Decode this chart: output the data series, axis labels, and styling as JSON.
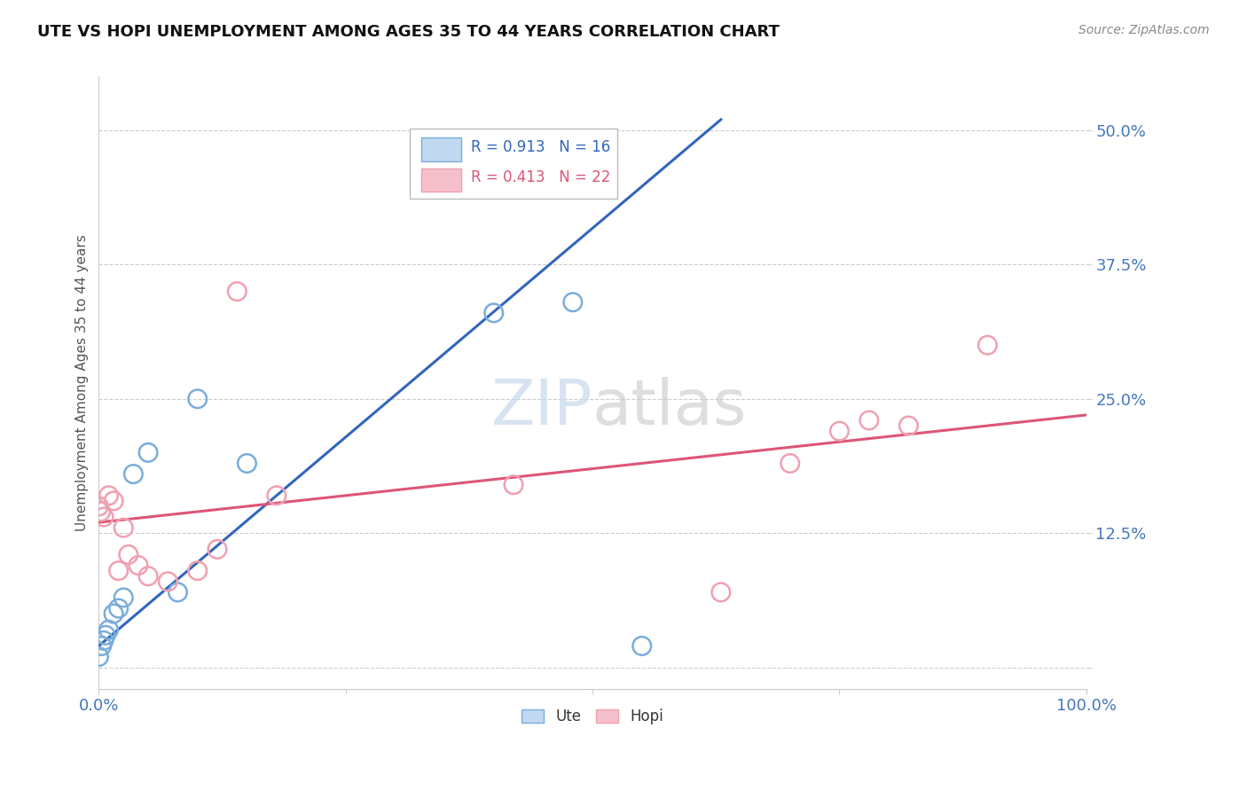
{
  "title": "UTE VS HOPI UNEMPLOYMENT AMONG AGES 35 TO 44 YEARS CORRELATION CHART",
  "source": "Source: ZipAtlas.com",
  "ylabel": "Unemployment Among Ages 35 to 44 years",
  "xlim": [
    0,
    100
  ],
  "ylim": [
    -2,
    55
  ],
  "yticks": [
    0,
    12.5,
    25,
    37.5,
    50
  ],
  "yticklabels": [
    "",
    "12.5%",
    "25.0%",
    "37.5%",
    "50.0%"
  ],
  "xtick_positions": [
    0,
    25,
    50,
    75,
    100
  ],
  "xticklabels": [
    "0.0%",
    "",
    "",
    "",
    "100.0%"
  ],
  "grid_color": "#cccccc",
  "background_color": "#ffffff",
  "ute_color": "#7aaddb",
  "hopi_color": "#f0a0b0",
  "ute_line_color": "#3366bb",
  "hopi_line_color": "#dd5577",
  "ute_R": 0.913,
  "ute_N": 16,
  "hopi_R": 0.413,
  "hopi_N": 22,
  "watermark": "ZIPatlas",
  "tick_color": "#4477bb",
  "ute_points_x": [
    0.0,
    0.3,
    0.5,
    0.7,
    1.0,
    1.5,
    2.0,
    2.5,
    3.5,
    5.0,
    8.0,
    10.0,
    15.0,
    40.0,
    48.0,
    55.0
  ],
  "ute_points_y": [
    1.0,
    2.0,
    2.5,
    3.0,
    3.5,
    5.0,
    5.5,
    6.5,
    18.0,
    20.0,
    7.0,
    25.0,
    19.0,
    33.0,
    34.0,
    2.0
  ],
  "hopi_points_x": [
    0.0,
    0.2,
    0.5,
    1.0,
    1.5,
    2.0,
    2.5,
    3.0,
    4.0,
    5.0,
    7.0,
    10.0,
    12.0,
    14.0,
    18.0,
    42.0,
    63.0,
    70.0,
    75.0,
    78.0,
    82.0,
    90.0
  ],
  "hopi_points_y": [
    15.0,
    14.5,
    14.0,
    16.0,
    15.5,
    9.0,
    13.0,
    10.5,
    9.5,
    8.5,
    8.0,
    9.0,
    11.0,
    35.0,
    16.0,
    17.0,
    7.0,
    19.0,
    22.0,
    23.0,
    22.5,
    30.0
  ],
  "ute_trend_x0": 0.0,
  "ute_trend_y0": 2.0,
  "ute_trend_x1": 63.0,
  "ute_trend_y1": 51.0,
  "hopi_trend_x0": 0.0,
  "hopi_trend_y0": 13.5,
  "hopi_trend_x1": 100.0,
  "hopi_trend_y1": 23.5
}
